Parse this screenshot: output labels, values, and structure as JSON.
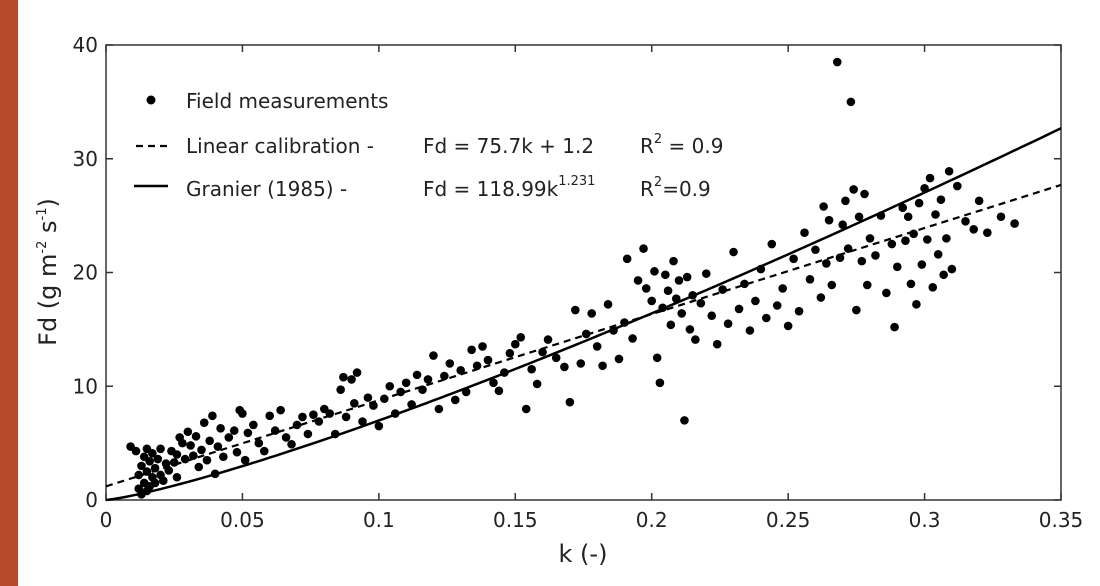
{
  "chart_data": {
    "type": "scatter",
    "xlabel": "k (-)",
    "ylabel": "Fd (g m-2 s-1)",
    "ylabel_parts": {
      "main": "Fd (g m",
      "exp1": "-2",
      "mid": " s",
      "exp2": "-1",
      "end": ")"
    },
    "xlim": [
      0,
      0.35
    ],
    "ylim": [
      0,
      40
    ],
    "x_ticks": [
      0,
      0.05,
      0.1,
      0.15,
      0.2,
      0.25,
      0.3,
      0.35
    ],
    "x_tick_labels": [
      "0",
      "0.05",
      "0.1",
      "0.15",
      "0.2",
      "0.25",
      "0.3",
      "0.35"
    ],
    "y_ticks": [
      0,
      10,
      20,
      30,
      40
    ],
    "y_tick_labels": [
      "0",
      "10",
      "20",
      "30",
      "40"
    ],
    "grid": false,
    "legend_position": "top-left",
    "legend": {
      "field": {
        "label": "Field measurements"
      },
      "linear": {
        "label": "Linear calibration -",
        "eq_main": "Fd = 75.7k + 1.2",
        "r2_main": "R",
        "r2_exp": "2",
        "r2_rest": " = 0.9"
      },
      "granier": {
        "label": "Granier (1985) -",
        "eq_main": "Fd = 118.99k",
        "eq_exp": "1.231",
        "r2_main": "R",
        "r2_exp": "2",
        "r2_rest": "=0.9"
      }
    },
    "series": [
      {
        "name": "Field measurements",
        "style": "markers",
        "color": "#000000",
        "points": [
          [
            0.009,
            4.7
          ],
          [
            0.011,
            4.3
          ],
          [
            0.012,
            1.0
          ],
          [
            0.012,
            2.2
          ],
          [
            0.013,
            0.5
          ],
          [
            0.013,
            3.0
          ],
          [
            0.014,
            1.5
          ],
          [
            0.014,
            3.8
          ],
          [
            0.015,
            0.8
          ],
          [
            0.015,
            2.5
          ],
          [
            0.015,
            4.5
          ],
          [
            0.016,
            1.2
          ],
          [
            0.016,
            3.4
          ],
          [
            0.017,
            2.0
          ],
          [
            0.017,
            4.1
          ],
          [
            0.018,
            1.5
          ],
          [
            0.018,
            2.8
          ],
          [
            0.019,
            3.6
          ],
          [
            0.02,
            2.2
          ],
          [
            0.02,
            4.5
          ],
          [
            0.021,
            1.7
          ],
          [
            0.022,
            3.2
          ],
          [
            0.023,
            2.6
          ],
          [
            0.024,
            4.3
          ],
          [
            0.025,
            3.3
          ],
          [
            0.026,
            2.0
          ],
          [
            0.026,
            4.0
          ],
          [
            0.027,
            5.5
          ],
          [
            0.028,
            5.0
          ],
          [
            0.029,
            3.6
          ],
          [
            0.03,
            6.0
          ],
          [
            0.031,
            4.8
          ],
          [
            0.032,
            3.9
          ],
          [
            0.033,
            5.6
          ],
          [
            0.034,
            2.9
          ],
          [
            0.035,
            4.4
          ],
          [
            0.036,
            6.8
          ],
          [
            0.037,
            3.5
          ],
          [
            0.038,
            5.2
          ],
          [
            0.039,
            7.4
          ],
          [
            0.04,
            2.3
          ],
          [
            0.041,
            4.7
          ],
          [
            0.042,
            6.3
          ],
          [
            0.043,
            3.8
          ],
          [
            0.045,
            5.5
          ],
          [
            0.047,
            6.1
          ],
          [
            0.048,
            4.2
          ],
          [
            0.049,
            7.9
          ],
          [
            0.05,
            7.6
          ],
          [
            0.051,
            3.5
          ],
          [
            0.052,
            5.9
          ],
          [
            0.054,
            6.6
          ],
          [
            0.056,
            5.0
          ],
          [
            0.058,
            4.3
          ],
          [
            0.06,
            7.4
          ],
          [
            0.062,
            6.1
          ],
          [
            0.064,
            7.9
          ],
          [
            0.066,
            5.5
          ],
          [
            0.068,
            4.9
          ],
          [
            0.07,
            6.6
          ],
          [
            0.072,
            7.3
          ],
          [
            0.074,
            5.8
          ],
          [
            0.076,
            7.5
          ],
          [
            0.078,
            6.9
          ],
          [
            0.08,
            8.0
          ],
          [
            0.082,
            7.6
          ],
          [
            0.084,
            5.8
          ],
          [
            0.086,
            9.7
          ],
          [
            0.087,
            10.8
          ],
          [
            0.088,
            7.3
          ],
          [
            0.09,
            10.6
          ],
          [
            0.091,
            8.5
          ],
          [
            0.092,
            11.2
          ],
          [
            0.094,
            6.9
          ],
          [
            0.096,
            9.0
          ],
          [
            0.098,
            8.3
          ],
          [
            0.1,
            6.5
          ],
          [
            0.102,
            8.9
          ],
          [
            0.104,
            10.0
          ],
          [
            0.106,
            7.6
          ],
          [
            0.108,
            9.5
          ],
          [
            0.11,
            10.3
          ],
          [
            0.112,
            8.4
          ],
          [
            0.114,
            11.0
          ],
          [
            0.116,
            9.7
          ],
          [
            0.118,
            10.6
          ],
          [
            0.12,
            12.7
          ],
          [
            0.122,
            8.0
          ],
          [
            0.124,
            10.9
          ],
          [
            0.126,
            12.0
          ],
          [
            0.128,
            8.8
          ],
          [
            0.13,
            11.4
          ],
          [
            0.132,
            9.5
          ],
          [
            0.134,
            13.2
          ],
          [
            0.136,
            11.8
          ],
          [
            0.138,
            13.5
          ],
          [
            0.14,
            12.3
          ],
          [
            0.142,
            10.3
          ],
          [
            0.144,
            9.6
          ],
          [
            0.146,
            11.2
          ],
          [
            0.148,
            12.9
          ],
          [
            0.15,
            13.7
          ],
          [
            0.152,
            14.3
          ],
          [
            0.154,
            8.0
          ],
          [
            0.156,
            11.5
          ],
          [
            0.158,
            10.2
          ],
          [
            0.16,
            13.0
          ],
          [
            0.162,
            14.1
          ],
          [
            0.165,
            12.5
          ],
          [
            0.168,
            11.7
          ],
          [
            0.17,
            8.6
          ],
          [
            0.172,
            16.7
          ],
          [
            0.174,
            12.0
          ],
          [
            0.176,
            14.6
          ],
          [
            0.178,
            16.4
          ],
          [
            0.18,
            13.5
          ],
          [
            0.182,
            11.8
          ],
          [
            0.184,
            17.2
          ],
          [
            0.186,
            14.9
          ],
          [
            0.188,
            12.4
          ],
          [
            0.19,
            15.6
          ],
          [
            0.191,
            21.2
          ],
          [
            0.193,
            14.2
          ],
          [
            0.195,
            19.3
          ],
          [
            0.197,
            22.1
          ],
          [
            0.198,
            18.6
          ],
          [
            0.2,
            17.5
          ],
          [
            0.201,
            20.1
          ],
          [
            0.202,
            12.5
          ],
          [
            0.203,
            10.3
          ],
          [
            0.204,
            16.9
          ],
          [
            0.205,
            19.8
          ],
          [
            0.206,
            18.4
          ],
          [
            0.207,
            15.4
          ],
          [
            0.208,
            21.0
          ],
          [
            0.209,
            17.7
          ],
          [
            0.21,
            19.3
          ],
          [
            0.211,
            16.4
          ],
          [
            0.212,
            7.0
          ],
          [
            0.213,
            19.6
          ],
          [
            0.214,
            15.0
          ],
          [
            0.215,
            18.0
          ],
          [
            0.216,
            14.1
          ],
          [
            0.218,
            17.3
          ],
          [
            0.22,
            19.9
          ],
          [
            0.222,
            16.2
          ],
          [
            0.224,
            13.7
          ],
          [
            0.226,
            18.5
          ],
          [
            0.228,
            15.5
          ],
          [
            0.23,
            21.8
          ],
          [
            0.232,
            16.8
          ],
          [
            0.234,
            19.0
          ],
          [
            0.236,
            14.9
          ],
          [
            0.238,
            17.5
          ],
          [
            0.24,
            20.3
          ],
          [
            0.242,
            16.0
          ],
          [
            0.244,
            22.5
          ],
          [
            0.246,
            17.1
          ],
          [
            0.248,
            18.6
          ],
          [
            0.25,
            15.3
          ],
          [
            0.252,
            21.2
          ],
          [
            0.254,
            16.6
          ],
          [
            0.256,
            23.5
          ],
          [
            0.258,
            19.4
          ],
          [
            0.26,
            22.0
          ],
          [
            0.262,
            17.8
          ],
          [
            0.263,
            25.8
          ],
          [
            0.264,
            20.8
          ],
          [
            0.265,
            24.6
          ],
          [
            0.266,
            18.9
          ],
          [
            0.268,
            38.5
          ],
          [
            0.269,
            21.3
          ],
          [
            0.27,
            24.2
          ],
          [
            0.271,
            26.3
          ],
          [
            0.272,
            22.1
          ],
          [
            0.273,
            35.0
          ],
          [
            0.274,
            27.3
          ],
          [
            0.275,
            16.7
          ],
          [
            0.276,
            24.9
          ],
          [
            0.277,
            21.0
          ],
          [
            0.278,
            26.9
          ],
          [
            0.279,
            18.9
          ],
          [
            0.28,
            23.0
          ],
          [
            0.282,
            21.5
          ],
          [
            0.284,
            25.0
          ],
          [
            0.286,
            18.2
          ],
          [
            0.288,
            22.5
          ],
          [
            0.289,
            15.2
          ],
          [
            0.29,
            20.5
          ],
          [
            0.292,
            25.7
          ],
          [
            0.293,
            22.8
          ],
          [
            0.294,
            24.9
          ],
          [
            0.295,
            19.0
          ],
          [
            0.296,
            23.4
          ],
          [
            0.297,
            17.2
          ],
          [
            0.298,
            26.1
          ],
          [
            0.299,
            20.7
          ],
          [
            0.3,
            27.4
          ],
          [
            0.301,
            22.9
          ],
          [
            0.302,
            28.3
          ],
          [
            0.303,
            18.7
          ],
          [
            0.304,
            25.1
          ],
          [
            0.305,
            21.6
          ],
          [
            0.306,
            26.4
          ],
          [
            0.307,
            19.8
          ],
          [
            0.308,
            23.0
          ],
          [
            0.309,
            28.9
          ],
          [
            0.31,
            20.3
          ],
          [
            0.312,
            27.6
          ],
          [
            0.315,
            24.5
          ],
          [
            0.318,
            23.8
          ],
          [
            0.32,
            26.3
          ],
          [
            0.323,
            23.5
          ],
          [
            0.328,
            24.9
          ],
          [
            0.333,
            24.3
          ]
        ]
      },
      {
        "name": "Linear calibration -",
        "style": "dashed",
        "color": "#000000"
      },
      {
        "name": "Granier (1985) -",
        "style": "solid",
        "color": "#000000"
      }
    ]
  }
}
